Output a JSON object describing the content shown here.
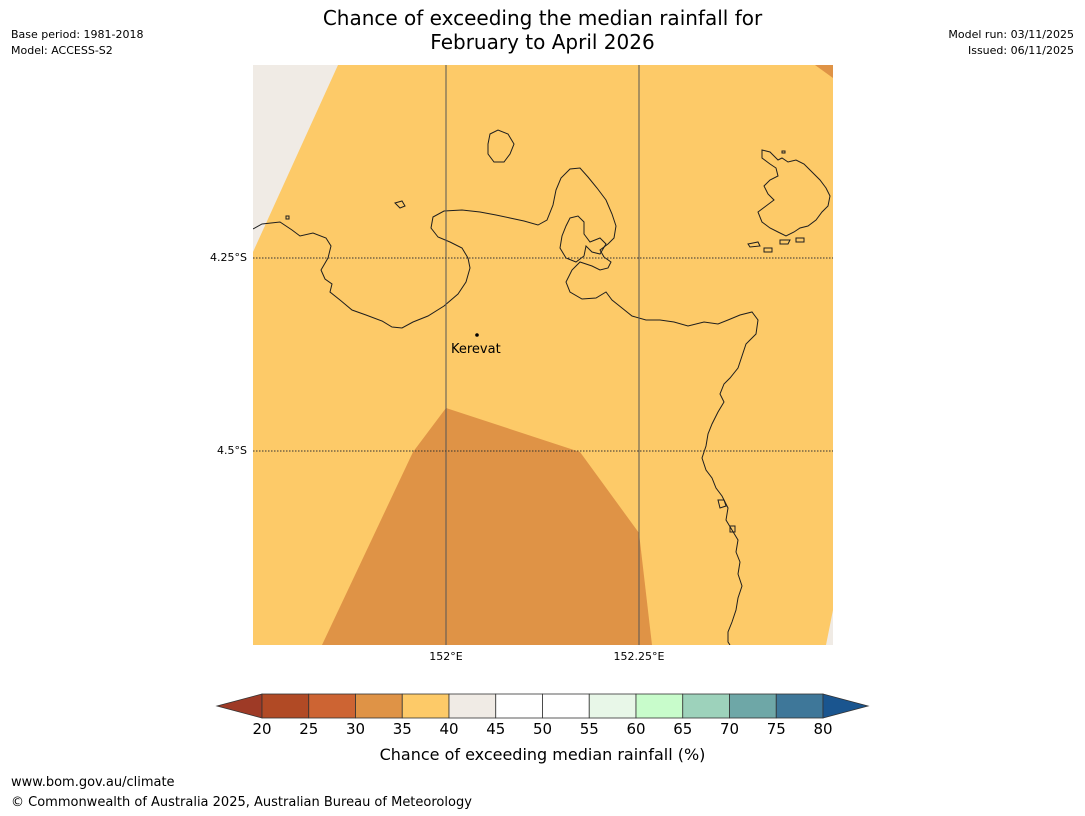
{
  "title_line1": "Chance of exceeding the median rainfall for",
  "title_line2": "February to April 2026",
  "meta_left": {
    "base_period": "Base period: 1981-2018",
    "model": "Model: ACCESS-S2"
  },
  "meta_right": {
    "model_run": "Model run: 03/11/2025",
    "issued": "Issued: 06/11/2025"
  },
  "map": {
    "lat_labels": [
      "4.25°S",
      "4.5°S"
    ],
    "lon_labels": [
      "152°E",
      "152.25°E"
    ],
    "place_name": "Kerevat",
    "colors": {
      "band_35_40": "#fdca68",
      "band_30_35": "#df9346",
      "band_40_45": "#f0ebe5"
    }
  },
  "colorbar": {
    "ticks": [
      "20",
      "25",
      "30",
      "35",
      "40",
      "45",
      "50",
      "55",
      "60",
      "65",
      "70",
      "75",
      "80"
    ],
    "colors": [
      "#b14a25",
      "#cd6433",
      "#df9346",
      "#fdca68",
      "#f0ebe5",
      "#ffffff",
      "#ffffff",
      "#e8f7e8",
      "#c8fccb",
      "#9dd2bb",
      "#6ea7a7",
      "#3e7799"
    ],
    "under_color": "#9e3a26",
    "over_color": "#1a558f",
    "label": "Chance of exceeding median rainfall (%)"
  },
  "footer": {
    "url": "www.bom.gov.au/climate",
    "copyright": "© Commonwealth of Australia 2025, Australian Bureau of Meteorology"
  }
}
